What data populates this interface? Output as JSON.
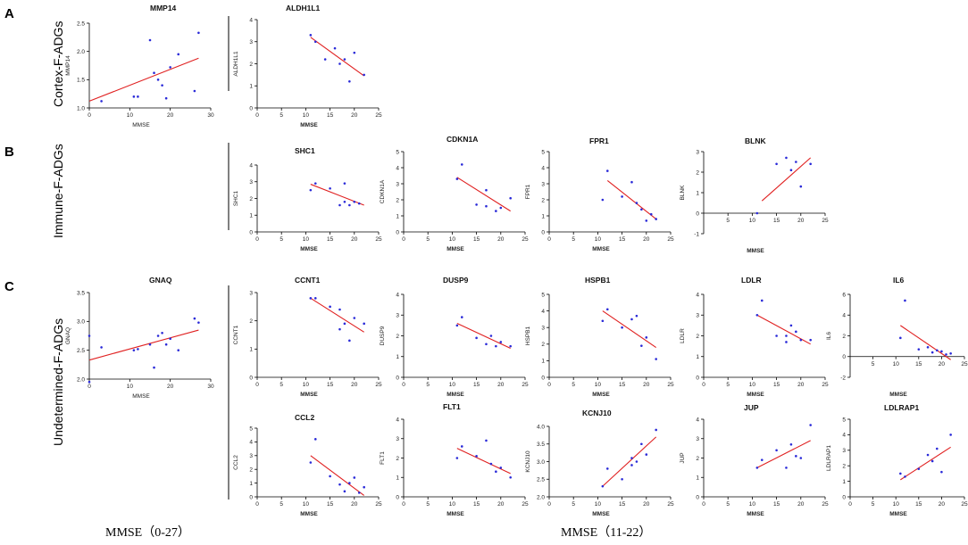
{
  "panels": [
    {
      "letter": "A",
      "label": "Cortex-F-ADGs"
    },
    {
      "letter": "B",
      "label": "Immune-F-ADGs"
    },
    {
      "letter": "C",
      "label": "Undetermined-F-ADGs"
    }
  ],
  "footer": {
    "left": "MMSE（0-27）",
    "right": "MMSE（11-22）"
  },
  "colors": {
    "point": "#2a2ad8",
    "fit_line": "#e02020",
    "axis": "#000000"
  },
  "chart_data": [
    {
      "id": "mmp14",
      "type": "scatter",
      "title": "MMP14",
      "xlabel": "MMSE",
      "ylabel": "MMP14",
      "xlim": [
        0,
        30
      ],
      "xticks": [
        0,
        10,
        20,
        30
      ],
      "ylim": [
        1.0,
        2.5
      ],
      "yticks": [
        1.0,
        1.5,
        2.0,
        2.5
      ],
      "x": [
        3,
        11,
        12,
        15,
        16,
        17,
        18,
        19,
        20,
        22,
        26,
        27
      ],
      "y": [
        1.12,
        1.2,
        1.2,
        2.2,
        1.62,
        1.5,
        1.4,
        1.17,
        1.72,
        1.95,
        1.3,
        2.33
      ],
      "fit": [
        [
          0,
          1.12
        ],
        [
          27,
          1.88
        ]
      ]
    },
    {
      "id": "aldh1l1",
      "type": "scatter",
      "title": "ALDH1L1",
      "xlabel": "MMSE",
      "ylabel": "ALDH1L1",
      "xlim": [
        0,
        25
      ],
      "xticks": [
        0,
        5,
        10,
        15,
        20,
        25
      ],
      "ylim": [
        0,
        4
      ],
      "yticks": [
        0,
        1,
        2,
        3,
        4
      ],
      "x": [
        11,
        12,
        14,
        16,
        17,
        18,
        19,
        20,
        22
      ],
      "y": [
        3.3,
        3.0,
        2.2,
        2.7,
        2.0,
        2.2,
        1.2,
        2.5,
        1.5
      ],
      "fit": [
        [
          11,
          3.2
        ],
        [
          22,
          1.45
        ]
      ]
    },
    {
      "id": "shc1",
      "type": "scatter",
      "title": "SHC1",
      "xlabel": "MMSE",
      "ylabel": "SHC1",
      "xlim": [
        0,
        25
      ],
      "xticks": [
        0,
        5,
        10,
        15,
        20,
        25
      ],
      "ylim": [
        0,
        4
      ],
      "yticks": [
        0,
        1,
        2,
        3,
        4
      ],
      "x": [
        11,
        12,
        15,
        17,
        18,
        18,
        19,
        20,
        21
      ],
      "y": [
        2.5,
        2.9,
        2.6,
        1.6,
        1.8,
        2.9,
        1.6,
        1.8,
        1.7
      ],
      "fit": [
        [
          11,
          2.85
        ],
        [
          22,
          1.6
        ]
      ]
    },
    {
      "id": "cdkn1a",
      "type": "scatter",
      "title": "CDKN1A",
      "xlabel": "MMSE",
      "ylabel": "CDKN1A",
      "xlim": [
        0,
        25
      ],
      "xticks": [
        0,
        5,
        10,
        15,
        20,
        25
      ],
      "ylim": [
        0,
        5
      ],
      "yticks": [
        0,
        1,
        2,
        3,
        4,
        5
      ],
      "x": [
        11,
        12,
        15,
        17,
        17,
        19,
        20,
        22
      ],
      "y": [
        3.3,
        4.2,
        1.7,
        2.6,
        1.6,
        1.3,
        1.5,
        2.1
      ],
      "fit": [
        [
          11,
          3.4
        ],
        [
          22,
          1.3
        ]
      ]
    },
    {
      "id": "fpr1",
      "type": "scatter",
      "title": "FPR1",
      "xlabel": "MMSE",
      "ylabel": "FPR1",
      "xlim": [
        0,
        25
      ],
      "xticks": [
        0,
        5,
        10,
        15,
        20,
        25
      ],
      "ylim": [
        0,
        5
      ],
      "yticks": [
        0,
        1,
        2,
        3,
        4,
        5
      ],
      "x": [
        11,
        12,
        15,
        17,
        18,
        19,
        20,
        21,
        22
      ],
      "y": [
        2.0,
        3.8,
        2.2,
        3.1,
        1.8,
        1.4,
        0.7,
        1.1,
        0.8
      ],
      "fit": [
        [
          12,
          3.2
        ],
        [
          22,
          0.8
        ]
      ]
    },
    {
      "id": "blnk",
      "type": "scatter",
      "title": "BLNK",
      "xlabel": "MMSE",
      "ylabel": "BLNK",
      "xlim": [
        0,
        25
      ],
      "xticks": [
        5,
        10,
        15,
        20,
        25
      ],
      "ylim": [
        -1,
        3
      ],
      "yticks": [
        -1,
        0,
        1,
        2,
        3
      ],
      "x": [
        11,
        15,
        17,
        18,
        19,
        20,
        22
      ],
      "y": [
        0.0,
        2.4,
        2.7,
        2.1,
        2.5,
        1.3,
        2.4
      ],
      "fit": [
        [
          12,
          0.6
        ],
        [
          22,
          2.7
        ]
      ]
    },
    {
      "id": "gnaq",
      "type": "scatter",
      "title": "GNAQ",
      "xlabel": "MMSE",
      "ylabel": "GNAQ",
      "xlim": [
        0,
        30
      ],
      "xticks": [
        0,
        10,
        20,
        30
      ],
      "ylim": [
        2.0,
        3.5
      ],
      "yticks": [
        2.0,
        2.5,
        3.0,
        3.5
      ],
      "x": [
        0,
        0,
        3,
        11,
        12,
        15,
        16,
        17,
        18,
        19,
        20,
        22,
        26,
        27
      ],
      "y": [
        2.75,
        1.95,
        2.55,
        2.5,
        2.52,
        2.6,
        2.2,
        2.75,
        2.8,
        2.6,
        2.7,
        2.5,
        3.05,
        2.98
      ],
      "fit": [
        [
          0,
          2.33
        ],
        [
          27,
          2.85
        ]
      ]
    },
    {
      "id": "ccnt1",
      "type": "scatter",
      "title": "CCNT1",
      "xlabel": "MMSE",
      "ylabel": "CCNT1",
      "xlim": [
        0,
        25
      ],
      "xticks": [
        0,
        5,
        10,
        15,
        20,
        25
      ],
      "ylim": [
        0,
        3
      ],
      "yticks": [
        0,
        1,
        2,
        3
      ],
      "x": [
        11,
        12,
        15,
        17,
        17,
        18,
        19,
        20,
        22
      ],
      "y": [
        2.8,
        2.8,
        2.5,
        1.7,
        2.4,
        1.9,
        1.3,
        2.1,
        1.9
      ],
      "fit": [
        [
          11,
          2.8
        ],
        [
          22,
          1.6
        ]
      ]
    },
    {
      "id": "dusp9",
      "type": "scatter",
      "title": "DUSP9",
      "xlabel": "MMSE",
      "ylabel": "DUSP9",
      "xlim": [
        0,
        25
      ],
      "xticks": [
        0,
        5,
        10,
        15,
        20,
        25
      ],
      "ylim": [
        0,
        4
      ],
      "yticks": [
        0,
        1,
        2,
        3,
        4
      ],
      "x": [
        11,
        12,
        15,
        17,
        18,
        19,
        20,
        22
      ],
      "y": [
        2.5,
        2.9,
        1.9,
        1.6,
        2.0,
        1.5,
        1.7,
        1.5
      ],
      "fit": [
        [
          11,
          2.6
        ],
        [
          22,
          1.4
        ]
      ]
    },
    {
      "id": "hspb1",
      "type": "scatter",
      "title": "HSPB1",
      "xlabel": "MMSE",
      "ylabel": "HSPB1",
      "xlim": [
        0,
        25
      ],
      "xticks": [
        0,
        5,
        10,
        15,
        20,
        25
      ],
      "ylim": [
        0,
        5
      ],
      "yticks": [
        0,
        1,
        2,
        3,
        4,
        5
      ],
      "x": [
        11,
        12,
        15,
        17,
        18,
        19,
        20,
        22
      ],
      "y": [
        3.4,
        4.1,
        3.0,
        3.5,
        3.7,
        1.9,
        2.4,
        1.1
      ],
      "fit": [
        [
          11,
          4.0
        ],
        [
          22,
          1.8
        ]
      ]
    },
    {
      "id": "ldlr",
      "type": "scatter",
      "title": "LDLR",
      "xlabel": "MMSE",
      "ylabel": "LDLR",
      "xlim": [
        0,
        25
      ],
      "xticks": [
        0,
        5,
        10,
        15,
        20,
        25
      ],
      "ylim": [
        0,
        4
      ],
      "yticks": [
        0,
        1,
        2,
        3,
        4
      ],
      "x": [
        11,
        12,
        15,
        17,
        17,
        18,
        19,
        20,
        22
      ],
      "y": [
        3.0,
        3.7,
        2.0,
        2.0,
        1.7,
        2.5,
        2.2,
        1.8,
        1.8
      ],
      "fit": [
        [
          11,
          3.0
        ],
        [
          22,
          1.6
        ]
      ]
    },
    {
      "id": "il6",
      "type": "scatter",
      "title": "IL6",
      "xlabel": "MMSE",
      "ylabel": "IL6",
      "xlim": [
        0,
        25
      ],
      "xticks": [
        5,
        10,
        15,
        20,
        25
      ],
      "ylim": [
        -2,
        6
      ],
      "yticks": [
        -2,
        0,
        2,
        4,
        6
      ],
      "x": [
        11,
        12,
        15,
        17,
        18,
        19,
        20,
        21,
        22
      ],
      "y": [
        1.8,
        5.4,
        0.7,
        0.9,
        0.4,
        0.6,
        0.5,
        0.2,
        0.3
      ],
      "fit": [
        [
          11,
          3.0
        ],
        [
          22,
          -0.3
        ]
      ]
    },
    {
      "id": "ccl2",
      "type": "scatter",
      "title": "CCL2",
      "xlabel": "MMSE",
      "ylabel": "CCL2",
      "xlim": [
        0,
        25
      ],
      "xticks": [
        0,
        5,
        10,
        15,
        20,
        25
      ],
      "ylim": [
        0,
        5
      ],
      "yticks": [
        0,
        1,
        2,
        3,
        4,
        5
      ],
      "x": [
        11,
        12,
        15,
        17,
        18,
        19,
        20,
        21,
        22
      ],
      "y": [
        2.5,
        4.2,
        1.5,
        0.9,
        0.4,
        1.0,
        1.4,
        0.3,
        0.7
      ],
      "fit": [
        [
          11,
          3.0
        ],
        [
          22,
          0.1
        ]
      ]
    },
    {
      "id": "flt1",
      "type": "scatter",
      "title": "FLT1",
      "xlabel": "MMSE",
      "ylabel": "FLT1",
      "xlim": [
        0,
        25
      ],
      "xticks": [
        0,
        5,
        10,
        15,
        20,
        25
      ],
      "ylim": [
        0,
        4
      ],
      "yticks": [
        0,
        1,
        2,
        3,
        4
      ],
      "x": [
        11,
        12,
        15,
        17,
        18,
        19,
        20,
        22
      ],
      "y": [
        2.0,
        2.6,
        2.1,
        2.9,
        1.7,
        1.3,
        1.5,
        1.0
      ],
      "fit": [
        [
          11,
          2.5
        ],
        [
          22,
          1.2
        ]
      ]
    },
    {
      "id": "kcnj10",
      "type": "scatter",
      "title": "KCNJ10",
      "xlabel": "MMSE",
      "ylabel": "KCNJ10",
      "xlim": [
        0,
        25
      ],
      "xticks": [
        0,
        5,
        10,
        15,
        20,
        25
      ],
      "ylim": [
        2.0,
        4.0
      ],
      "yticks": [
        2.0,
        2.5,
        3.0,
        3.5,
        4.0
      ],
      "x": [
        11,
        12,
        15,
        17,
        17,
        18,
        19,
        20,
        22
      ],
      "y": [
        2.3,
        2.8,
        2.5,
        2.9,
        3.1,
        3.0,
        3.5,
        3.2,
        3.9
      ],
      "fit": [
        [
          11,
          2.3
        ],
        [
          22,
          3.7
        ]
      ]
    },
    {
      "id": "jup",
      "type": "scatter",
      "title": "JUP",
      "xlabel": "MMSE",
      "ylabel": "JUP",
      "xlim": [
        0,
        25
      ],
      "xticks": [
        0,
        5,
        10,
        15,
        20,
        25
      ],
      "ylim": [
        0,
        4
      ],
      "yticks": [
        0,
        1,
        2,
        3,
        4
      ],
      "x": [
        11,
        12,
        15,
        17,
        18,
        19,
        20,
        22
      ],
      "y": [
        1.5,
        1.9,
        2.4,
        1.5,
        2.7,
        2.1,
        2.0,
        3.7
      ],
      "fit": [
        [
          11,
          1.5
        ],
        [
          22,
          2.9
        ]
      ]
    },
    {
      "id": "ldlrap1",
      "type": "scatter",
      "title": "LDLRAP1",
      "xlabel": "MMSE",
      "ylabel": "LDLRAP1",
      "xlim": [
        0,
        25
      ],
      "xticks": [
        0,
        5,
        10,
        15,
        20,
        25
      ],
      "ylim": [
        0,
        5
      ],
      "yticks": [
        0,
        1,
        2,
        3,
        4,
        5
      ],
      "x": [
        11,
        12,
        15,
        17,
        18,
        19,
        20,
        22
      ],
      "y": [
        1.5,
        1.3,
        1.8,
        2.7,
        2.3,
        3.1,
        1.6,
        4.0
      ],
      "fit": [
        [
          11,
          1.1
        ],
        [
          22,
          3.2
        ]
      ]
    }
  ]
}
